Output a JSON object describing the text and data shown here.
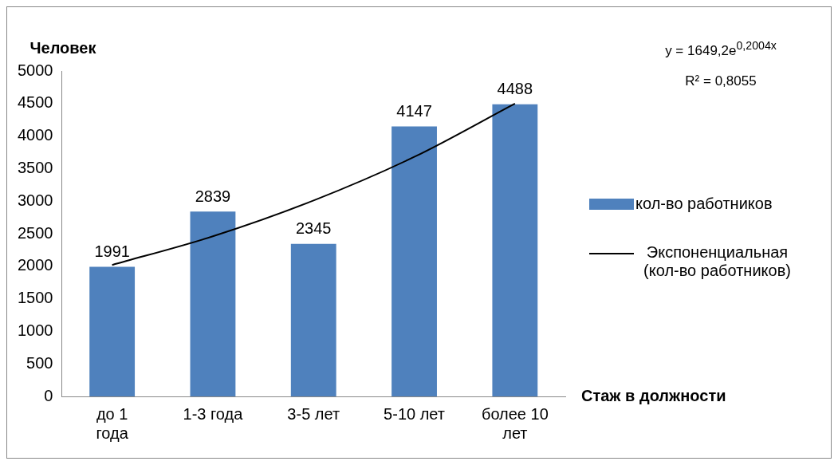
{
  "chart_data": {
    "type": "bar",
    "ylabel": "Человек",
    "xlabel": "Стаж в должности",
    "categories": [
      "до 1 года",
      "1-3 года",
      "3-5 лет",
      "5-10 лет",
      "более 10 лет"
    ],
    "series": [
      {
        "name": "кол-во работников",
        "color": "#4f81bd",
        "values": [
          1991,
          2839,
          2345,
          4147,
          4488
        ],
        "value_labels": [
          "1991",
          "2839",
          "2345",
          "4147",
          "4488"
        ]
      },
      {
        "name": "Экспоненциальная (кол-во работников)",
        "type": "line",
        "color": "#000000",
        "values": [
          2020,
          2460,
          3010,
          3680,
          4500
        ]
      }
    ],
    "ylim": [
      0,
      5000
    ],
    "yticks": [
      0,
      500,
      1000,
      1500,
      2000,
      2500,
      3000,
      3500,
      4000,
      4500,
      5000
    ],
    "grid": false,
    "legend": "right",
    "marker": "none",
    "line_style": "solid",
    "annotations": [
      "y = 1649,2e$^{0,2004x}$",
      "R² = 0,8055"
    ]
  }
}
